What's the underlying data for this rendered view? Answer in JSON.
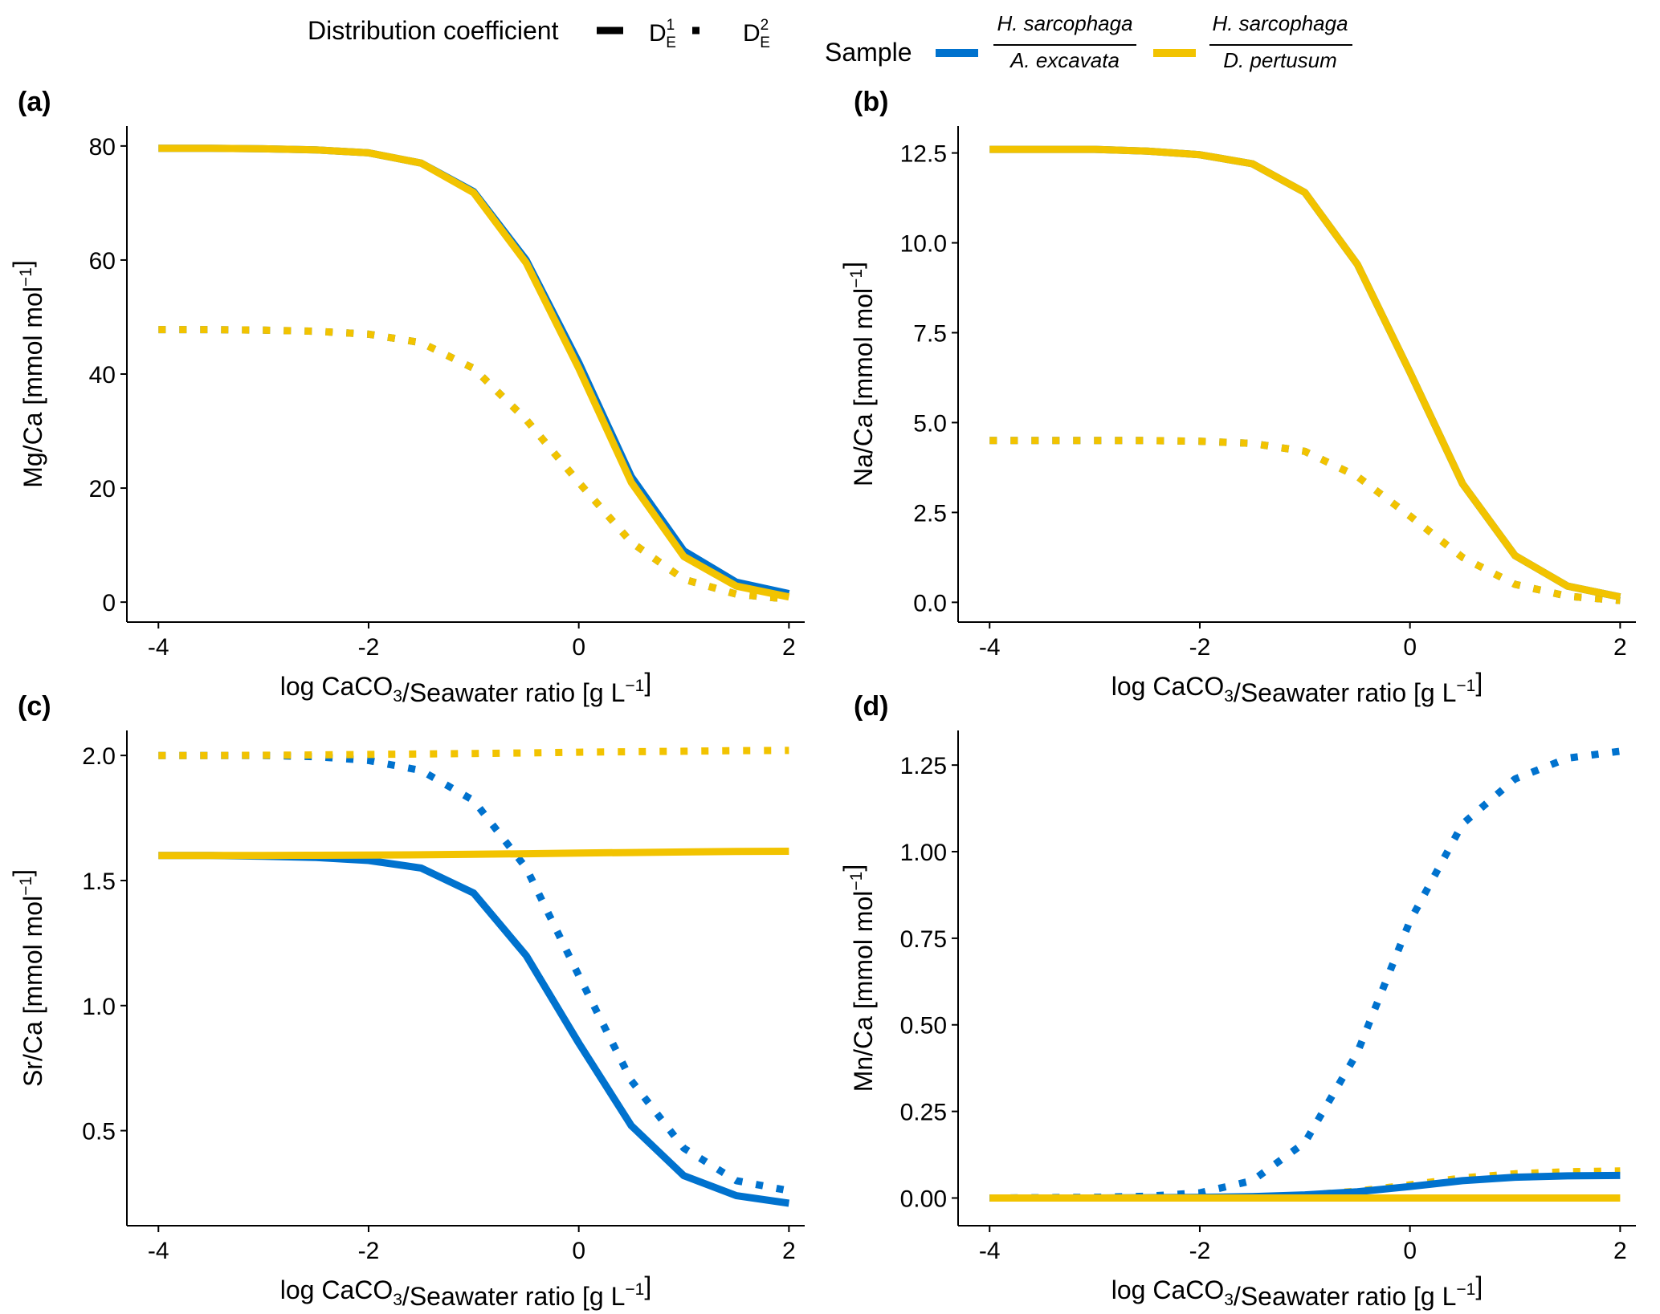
{
  "legend": {
    "distribution_title": "Distribution coefficient",
    "dist_items": [
      {
        "label": "D",
        "sup": "1",
        "sub": "E",
        "linetype": "solid"
      },
      {
        "label": "D",
        "sup": "2",
        "sub": "E",
        "linetype": "dotted"
      }
    ],
    "sample_title": "Sample",
    "sample_items": [
      {
        "numerator": "H. sarcophaga",
        "denominator": "A. excavata",
        "color": "#0072CE"
      },
      {
        "numerator": "H. sarcophaga",
        "denominator": "D. pertusum",
        "color": "#F2C300"
      }
    ]
  },
  "colors": {
    "blue": "#0072CE",
    "gold": "#F2C300",
    "axis": "#000000"
  },
  "chart_data": [
    {
      "panel": "(a)",
      "type": "line",
      "ylabel": "Mg/Ca [mmol mol⁻¹]",
      "xlabel": "log CaCO₃/Seawater ratio [g L⁻¹]",
      "xlim": [
        -4.3,
        2.15
      ],
      "ylim": [
        -3.5,
        83.5
      ],
      "xticks": [
        -4,
        -2,
        0,
        2
      ],
      "yticks": [
        0,
        20,
        40,
        60,
        80
      ],
      "ytick_labels": [
        "0",
        "20",
        "40",
        "60",
        "80"
      ],
      "grid": false,
      "x": [
        -4,
        -3.5,
        -3,
        -2.5,
        -2,
        -1.5,
        -1,
        -0.5,
        0,
        0.5,
        1,
        1.5,
        2
      ],
      "series": [
        {
          "sample": "A. excavata",
          "coef": "D1",
          "color": "blue",
          "dash": "solid",
          "values": [
            79.6,
            79.6,
            79.5,
            79.3,
            78.8,
            77.0,
            72.0,
            60.0,
            42.0,
            22.0,
            9.0,
            3.5,
            1.5
          ]
        },
        {
          "sample": "D. pertusum",
          "coef": "D1",
          "color": "gold",
          "dash": "solid",
          "values": [
            79.6,
            79.6,
            79.5,
            79.3,
            78.8,
            77.0,
            71.8,
            59.5,
            41.0,
            21.0,
            8.0,
            2.8,
            0.9
          ]
        },
        {
          "sample": "A. excavata",
          "coef": "D2",
          "color": "blue",
          "dash": "dotted",
          "values": [
            47.8,
            47.8,
            47.7,
            47.5,
            47.0,
            45.5,
            41.0,
            32.0,
            21.0,
            10.5,
            4.0,
            1.4,
            0.5
          ]
        },
        {
          "sample": "D. pertusum",
          "coef": "D2",
          "color": "gold",
          "dash": "dotted",
          "values": [
            47.8,
            47.8,
            47.7,
            47.5,
            47.0,
            45.5,
            41.0,
            32.0,
            21.0,
            10.5,
            4.0,
            1.4,
            0.5
          ]
        }
      ]
    },
    {
      "panel": "(b)",
      "type": "line",
      "ylabel": "Na/Ca [mmol mol⁻¹]",
      "xlabel": "log CaCO₃/Seawater ratio [g L⁻¹]",
      "xlim": [
        -4.3,
        2.15
      ],
      "ylim": [
        -0.55,
        13.25
      ],
      "xticks": [
        -4,
        -2,
        0,
        2
      ],
      "yticks": [
        0,
        2.5,
        5,
        7.5,
        10,
        12.5
      ],
      "ytick_labels": [
        "0.0",
        "2.5",
        "5.0",
        "7.5",
        "10.0",
        "12.5"
      ],
      "grid": false,
      "x": [
        -4,
        -3.5,
        -3,
        -2.5,
        -2,
        -1.5,
        -1,
        -0.5,
        0,
        0.5,
        1,
        1.5,
        2
      ],
      "series": [
        {
          "sample": "A. excavata",
          "coef": "D1",
          "color": "blue",
          "dash": "solid",
          "values": [
            12.6,
            12.6,
            12.6,
            12.55,
            12.45,
            12.2,
            11.4,
            9.4,
            6.4,
            3.3,
            1.3,
            0.45,
            0.15
          ]
        },
        {
          "sample": "D. pertusum",
          "coef": "D1",
          "color": "gold",
          "dash": "solid",
          "values": [
            12.6,
            12.6,
            12.6,
            12.55,
            12.45,
            12.2,
            11.4,
            9.4,
            6.4,
            3.3,
            1.3,
            0.45,
            0.15
          ]
        },
        {
          "sample": "A. excavata",
          "coef": "D2",
          "color": "blue",
          "dash": "dotted",
          "values": [
            4.5,
            4.5,
            4.5,
            4.5,
            4.48,
            4.42,
            4.2,
            3.5,
            2.4,
            1.25,
            0.5,
            0.17,
            0.05
          ]
        },
        {
          "sample": "D. pertusum",
          "coef": "D2",
          "color": "gold",
          "dash": "dotted",
          "values": [
            4.5,
            4.5,
            4.5,
            4.5,
            4.48,
            4.42,
            4.2,
            3.5,
            2.4,
            1.25,
            0.5,
            0.17,
            0.05
          ]
        }
      ]
    },
    {
      "panel": "(c)",
      "type": "line",
      "ylabel": "Sr/Ca [mmol mol⁻¹]",
      "xlabel": "log CaCO₃/Seawater ratio [g L⁻¹]",
      "xlim": [
        -4.3,
        2.15
      ],
      "ylim": [
        0.12,
        2.1
      ],
      "xticks": [
        -4,
        -2,
        0,
        2
      ],
      "yticks": [
        0.5,
        1.0,
        1.5,
        2.0
      ],
      "ytick_labels": [
        "0.5",
        "1.0",
        "1.5",
        "2.0"
      ],
      "grid": false,
      "x": [
        -4,
        -3.5,
        -3,
        -2.5,
        -2,
        -1.5,
        -1,
        -0.5,
        0,
        0.5,
        1,
        1.5,
        2
      ],
      "series": [
        {
          "sample": "A. excavata",
          "coef": "D1",
          "color": "blue",
          "dash": "solid",
          "values": [
            1.6,
            1.6,
            1.597,
            1.592,
            1.58,
            1.55,
            1.45,
            1.2,
            0.85,
            0.52,
            0.32,
            0.24,
            0.21
          ]
        },
        {
          "sample": "D. pertusum",
          "coef": "D1",
          "color": "gold",
          "dash": "solid",
          "values": [
            1.6,
            1.6,
            1.6,
            1.601,
            1.602,
            1.603,
            1.605,
            1.607,
            1.61,
            1.612,
            1.614,
            1.616,
            1.617
          ]
        },
        {
          "sample": "A. excavata",
          "coef": "D2",
          "color": "blue",
          "dash": "dotted",
          "values": [
            2.0,
            2.0,
            2.0,
            1.995,
            1.98,
            1.94,
            1.82,
            1.55,
            1.12,
            0.7,
            0.43,
            0.3,
            0.26
          ]
        },
        {
          "sample": "D. pertusum",
          "coef": "D2",
          "color": "gold",
          "dash": "dotted",
          "values": [
            2.0,
            2.0,
            2.001,
            2.002,
            2.004,
            2.006,
            2.008,
            2.01,
            2.013,
            2.015,
            2.017,
            2.019,
            2.02
          ]
        }
      ]
    },
    {
      "panel": "(d)",
      "type": "line",
      "ylabel": "Mn/Ca [mmol mol⁻¹]",
      "xlabel": "log CaCO₃/Seawater ratio [g L⁻¹]",
      "xlim": [
        -4.3,
        2.15
      ],
      "ylim": [
        -0.08,
        1.35
      ],
      "xticks": [
        -4,
        -2,
        0,
        2
      ],
      "yticks": [
        0,
        0.25,
        0.5,
        0.75,
        1.0,
        1.25
      ],
      "ytick_labels": [
        "0.00",
        "0.25",
        "0.50",
        "0.75",
        "1.00",
        "1.25"
      ],
      "grid": false,
      "x": [
        -4,
        -3.5,
        -3,
        -2.5,
        -2,
        -1.5,
        -1,
        -0.5,
        0,
        0.5,
        1,
        1.5,
        2
      ],
      "series": [
        {
          "sample": "A. excavata",
          "coef": "D1",
          "color": "blue",
          "dash": "solid",
          "values": [
            0.0,
            0.0,
            0.0,
            0.001,
            0.002,
            0.004,
            0.009,
            0.018,
            0.033,
            0.05,
            0.06,
            0.064,
            0.065
          ]
        },
        {
          "sample": "D. pertusum",
          "coef": "D1",
          "color": "gold",
          "dash": "solid",
          "values": [
            0.0,
            0.0,
            0.0,
            0.0,
            0.0,
            0.0,
            0.0,
            0.0,
            0.0,
            0.0,
            0.0,
            0.0,
            0.0
          ]
        },
        {
          "sample": "A. excavata",
          "coef": "D2",
          "color": "blue",
          "dash": "dotted",
          "values": [
            0.0,
            0.001,
            0.002,
            0.005,
            0.015,
            0.05,
            0.16,
            0.42,
            0.8,
            1.08,
            1.21,
            1.27,
            1.29
          ]
        },
        {
          "sample": "D. pertusum",
          "coef": "D2",
          "color": "gold",
          "dash": "dotted",
          "values": [
            0.0,
            0.0,
            0.0,
            0.0,
            0.001,
            0.003,
            0.008,
            0.02,
            0.038,
            0.058,
            0.07,
            0.076,
            0.078
          ]
        }
      ]
    }
  ]
}
